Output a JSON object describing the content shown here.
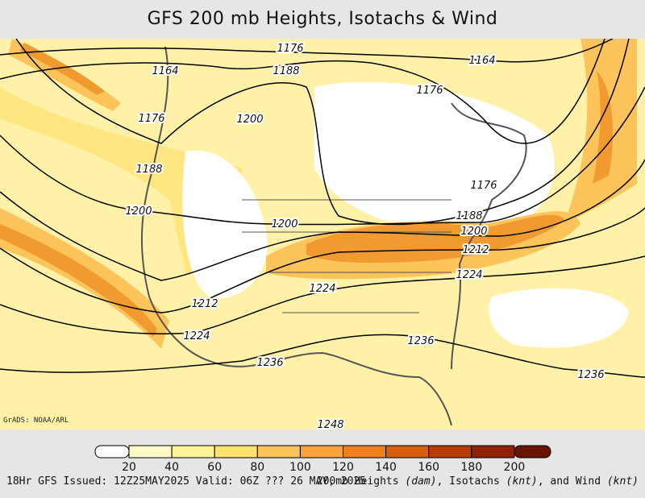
{
  "title": "GFS 200 mb Heights, Isotachs & Wind",
  "contour_labels": [
    "1176",
    "1164",
    "1164",
    "1188",
    "1176",
    "1176",
    "1200",
    "1188",
    "1176",
    "1200",
    "1200",
    "1188",
    "1200",
    "1212",
    "1224",
    "1224",
    "1212",
    "1224",
    "1236",
    "1236",
    "1236",
    "1248"
  ],
  "credit": "GrADS: NOAA/ARL",
  "colorbar": {
    "ticks": [
      20,
      40,
      60,
      80,
      100,
      120,
      140,
      160,
      180,
      200
    ],
    "colors": [
      "#ffffff",
      "#fffbc8",
      "#fff39a",
      "#ffe36e",
      "#fcc45a",
      "#f9a33a",
      "#ef7e1c",
      "#d95d0e",
      "#b83c05",
      "#922203",
      "#6a1302"
    ]
  },
  "footer_left": "18Hr GFS Issued: 12Z25MAY2025 Valid: 06Z ??? 26 MAY, 2025",
  "footer_right": [
    {
      "text": "200mb Heights ",
      "italic": false
    },
    {
      "text": "(dam)",
      "italic": true
    },
    {
      "text": ", Isotachs ",
      "italic": false
    },
    {
      "text": "(knt)",
      "italic": true
    },
    {
      "text": ", and Wind ",
      "italic": false
    },
    {
      "text": "(knt)",
      "italic": true
    }
  ]
}
